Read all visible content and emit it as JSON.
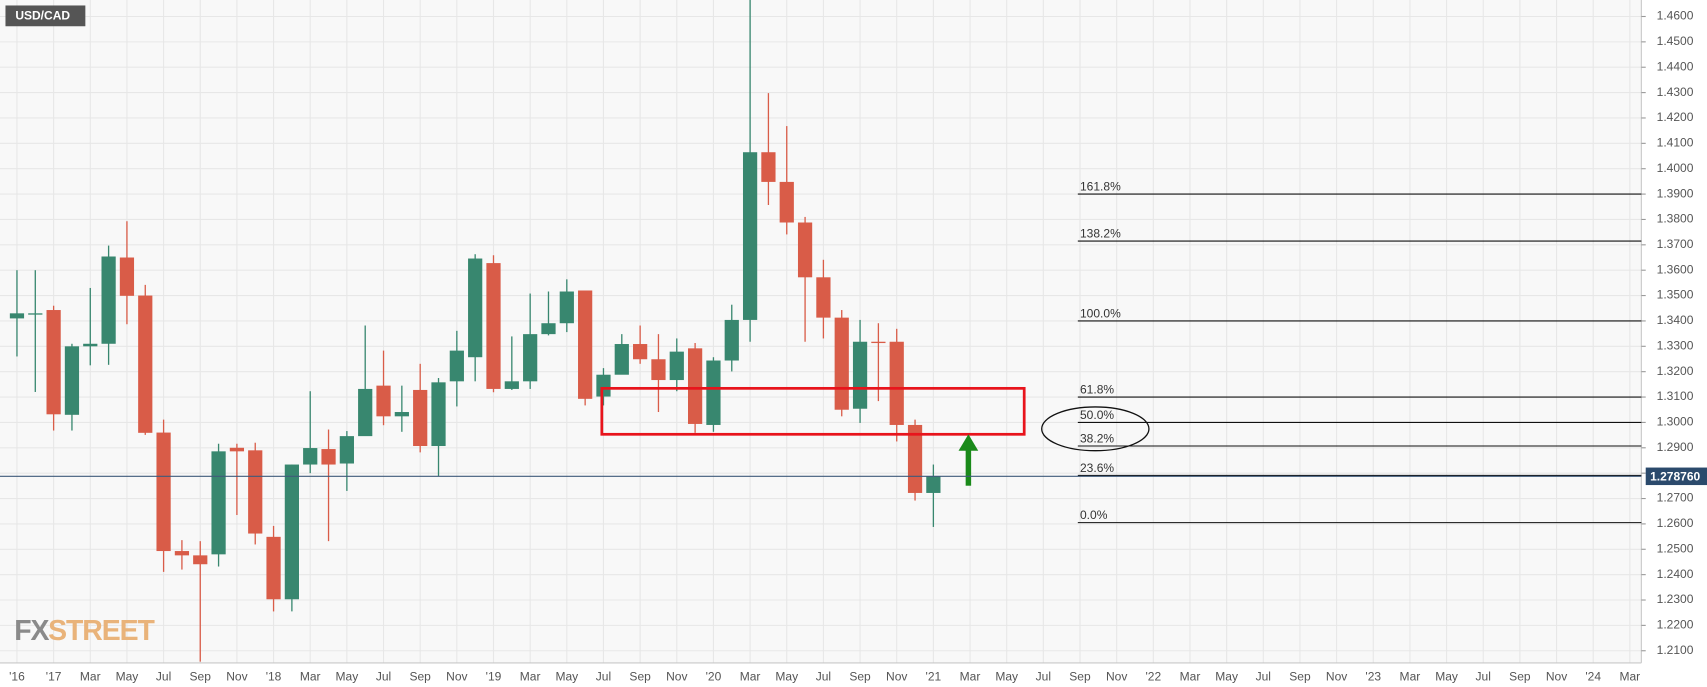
{
  "chart_data": {
    "type": "candlestick",
    "title": "USD/CAD",
    "logo": [
      "FX",
      "STREET"
    ],
    "up_color": "#38876f",
    "down_color": "#d95c48",
    "categories": [
      "'16",
      null,
      "'17",
      null,
      "Mar",
      null,
      "May",
      null,
      "Jul",
      null,
      "Sep",
      null,
      "Nov",
      null,
      "'18",
      null,
      "Mar",
      null,
      "May",
      null,
      "Jul",
      null,
      "Sep",
      null,
      "Nov",
      null,
      "'19",
      null,
      "Mar",
      null,
      "May",
      null,
      "Jul",
      null,
      "Sep",
      null,
      "Nov",
      null,
      "'20",
      null,
      "Mar",
      null,
      "May",
      null,
      "Jul",
      null,
      "Sep",
      null,
      "Nov",
      null,
      "'21",
      null,
      "Mar",
      null,
      "May",
      null,
      "Jul",
      null,
      "Sep",
      null,
      "Nov",
      null,
      "'22",
      null,
      "Mar",
      null,
      "May",
      null,
      "Jul",
      null,
      "Sep",
      null,
      "Nov",
      null,
      "'23",
      null,
      "Mar",
      null,
      "May",
      null,
      "Jul",
      null,
      "Sep",
      null,
      "Nov",
      null,
      "'24",
      null,
      "Mar"
    ],
    "open": [
      1.341,
      1.343,
      1.3443,
      1.303,
      1.33,
      1.331,
      1.365,
      1.35,
      1.296,
      1.2493,
      1.2476,
      1.248,
      1.29,
      1.289,
      1.2549,
      1.2303,
      1.2834,
      1.2895,
      1.2838,
      1.2946,
      1.3145,
      1.3024,
      1.3128,
      1.2907,
      1.3162,
      1.3257,
      1.3628,
      1.3132,
      1.3162,
      1.3348,
      1.3391,
      1.352,
      1.3102,
      1.3188,
      1.3309,
      1.3249,
      1.3167,
      1.3292,
      1.299,
      1.3244,
      1.3404,
      1.4065,
      1.3948,
      1.3788,
      1.3572,
      1.3413,
      1.3054,
      1.3318,
      1.3318,
      1.299,
      1.2722,
      null,
      null,
      null,
      null,
      null,
      null,
      null,
      null,
      null,
      null,
      null,
      null,
      null,
      null,
      null,
      null,
      null,
      null,
      null,
      null,
      null,
      null,
      null,
      null,
      null,
      null,
      null,
      null,
      null,
      null,
      null,
      null,
      null,
      null,
      null,
      null,
      null,
      null
    ],
    "high": [
      1.36,
      1.36,
      1.346,
      1.331,
      1.353,
      1.3697,
      1.3793,
      1.3542,
      1.3011,
      1.2536,
      1.2532,
      1.2916,
      1.2916,
      1.292,
      1.2592,
      1.2834,
      1.3123,
      1.2972,
      1.2966,
      1.3382,
      1.3283,
      1.3145,
      1.3231,
      1.3175,
      1.3361,
      1.3663,
      1.3659,
      1.3339,
      1.3508,
      1.3516,
      1.3564,
      1.352,
      1.3214,
      1.3348,
      1.3382,
      1.3348,
      1.3331,
      1.3313,
      1.3257,
      1.3464,
      1.4665,
      1.4298,
      1.4168,
      1.381,
      1.3641,
      1.3443,
      1.3404,
      1.3391,
      1.3369,
      1.3011,
      1.2834,
      null,
      null,
      null,
      null,
      null,
      null,
      null,
      null,
      null,
      null,
      null,
      null,
      null,
      null,
      null,
      null,
      null,
      null,
      null,
      null,
      null,
      null,
      null,
      null,
      null,
      null,
      null,
      null,
      null,
      null,
      null,
      null,
      null,
      null,
      null,
      null,
      null,
      null
    ],
    "low": [
      1.326,
      1.312,
      1.2968,
      1.2968,
      1.3225,
      1.3227,
      1.3387,
      1.2951,
      1.2411,
      1.242,
      1.2057,
      1.2432,
      1.2635,
      1.2519,
      1.2255,
      1.2255,
      1.28,
      1.2532,
      1.273,
      1.2959,
      1.2989,
      1.2963,
      1.2882,
      1.2787,
      1.3063,
      1.3162,
      1.3119,
      1.3128,
      1.3132,
      1.3343,
      1.3356,
      1.3067,
      1.3067,
      1.3192,
      1.3231,
      1.3041,
      1.3123,
      1.2959,
      1.2963,
      1.3201,
      1.3318,
      1.3857,
      1.3741,
      1.3318,
      1.3331,
      1.3024,
      1.2998,
      1.3084,
      1.2925,
      1.2692,
      1.2588,
      null,
      null,
      null,
      null,
      null,
      null,
      null,
      null,
      null,
      null,
      null,
      null,
      null,
      null,
      null,
      null,
      null,
      null,
      null,
      null,
      null,
      null,
      null,
      null,
      null,
      null,
      null,
      null,
      null,
      null,
      null,
      null,
      null,
      null,
      null,
      null,
      null,
      null
    ],
    "close": [
      1.343,
      1.343,
      1.3032,
      1.33,
      1.331,
      1.3654,
      1.3499,
      1.2959,
      1.2493,
      1.2476,
      1.2441,
      1.2886,
      1.2886,
      1.2562,
      1.2303,
      1.2834,
      1.2899,
      1.2834,
      1.2946,
      1.3132,
      1.3024,
      1.3041,
      1.2907,
      1.3158,
      1.3283,
      1.3646,
      1.3132,
      1.3162,
      1.3348,
      1.3391,
      1.3516,
      1.3093,
      1.3188,
      1.3309,
      1.3249,
      1.3167,
      1.3279,
      1.2994,
      1.3244,
      1.3404,
      1.4065,
      1.3948,
      1.3788,
      1.3572,
      1.3413,
      1.305,
      1.3318,
      1.3313,
      1.299,
      1.2722,
      1.2787,
      null,
      null,
      null,
      null,
      null,
      null,
      null,
      null,
      null,
      null,
      null,
      null,
      null,
      null,
      null,
      null,
      null,
      null,
      null,
      null,
      null,
      null,
      null,
      null,
      null,
      null,
      null,
      null,
      null,
      null,
      null,
      null,
      null,
      null,
      null,
      null,
      null,
      null
    ],
    "ylim": [
      1.2052,
      1.4665
    ],
    "yticks": [
      {
        "value": 1.21,
        "label": "1.2100"
      },
      {
        "value": 1.22,
        "label": "1.2200"
      },
      {
        "value": 1.23,
        "label": "1.2300"
      },
      {
        "value": 1.24,
        "label": "1.2400"
      },
      {
        "value": 1.25,
        "label": "1.2500"
      },
      {
        "value": 1.26,
        "label": "1.2600"
      },
      {
        "value": 1.27,
        "label": "1.2700"
      },
      {
        "value": 1.28,
        "label": "1.2800"
      },
      {
        "value": 1.29,
        "label": "1.2900"
      },
      {
        "value": 1.3,
        "label": "1.3000"
      },
      {
        "value": 1.31,
        "label": "1.3100"
      },
      {
        "value": 1.32,
        "label": "1.3200"
      },
      {
        "value": 1.33,
        "label": "1.3300"
      },
      {
        "value": 1.34,
        "label": "1.3400"
      },
      {
        "value": 1.35,
        "label": "1.3500"
      },
      {
        "value": 1.36,
        "label": "1.3600"
      },
      {
        "value": 1.37,
        "label": "1.3700"
      },
      {
        "value": 1.38,
        "label": "1.3800"
      },
      {
        "value": 1.39,
        "label": "1.3900"
      },
      {
        "value": 1.4,
        "label": "1.4000"
      },
      {
        "value": 1.41,
        "label": "1.4100"
      },
      {
        "value": 1.42,
        "label": "1.4200"
      },
      {
        "value": 1.43,
        "label": "1.4300"
      },
      {
        "value": 1.44,
        "label": "1.4400"
      },
      {
        "value": 1.45,
        "label": "1.4500"
      },
      {
        "value": 1.46,
        "label": "1.4600"
      }
    ],
    "grid": true,
    "last_price": {
      "value": 1.27876,
      "label": "1.278760"
    },
    "fib_levels": [
      {
        "label": "161.8%",
        "price": 1.39
      },
      {
        "label": "138.2%",
        "price": 1.3715
      },
      {
        "label": "100.0%",
        "price": 1.34
      },
      {
        "label": "61.8%",
        "price": 1.31
      },
      {
        "label": "50.0%",
        "price": 1.3
      },
      {
        "label": "38.2%",
        "price": 1.2907
      },
      {
        "label": "23.6%",
        "price": 1.2791
      },
      {
        "label": "0.0%",
        "price": 1.2605
      }
    ]
  }
}
